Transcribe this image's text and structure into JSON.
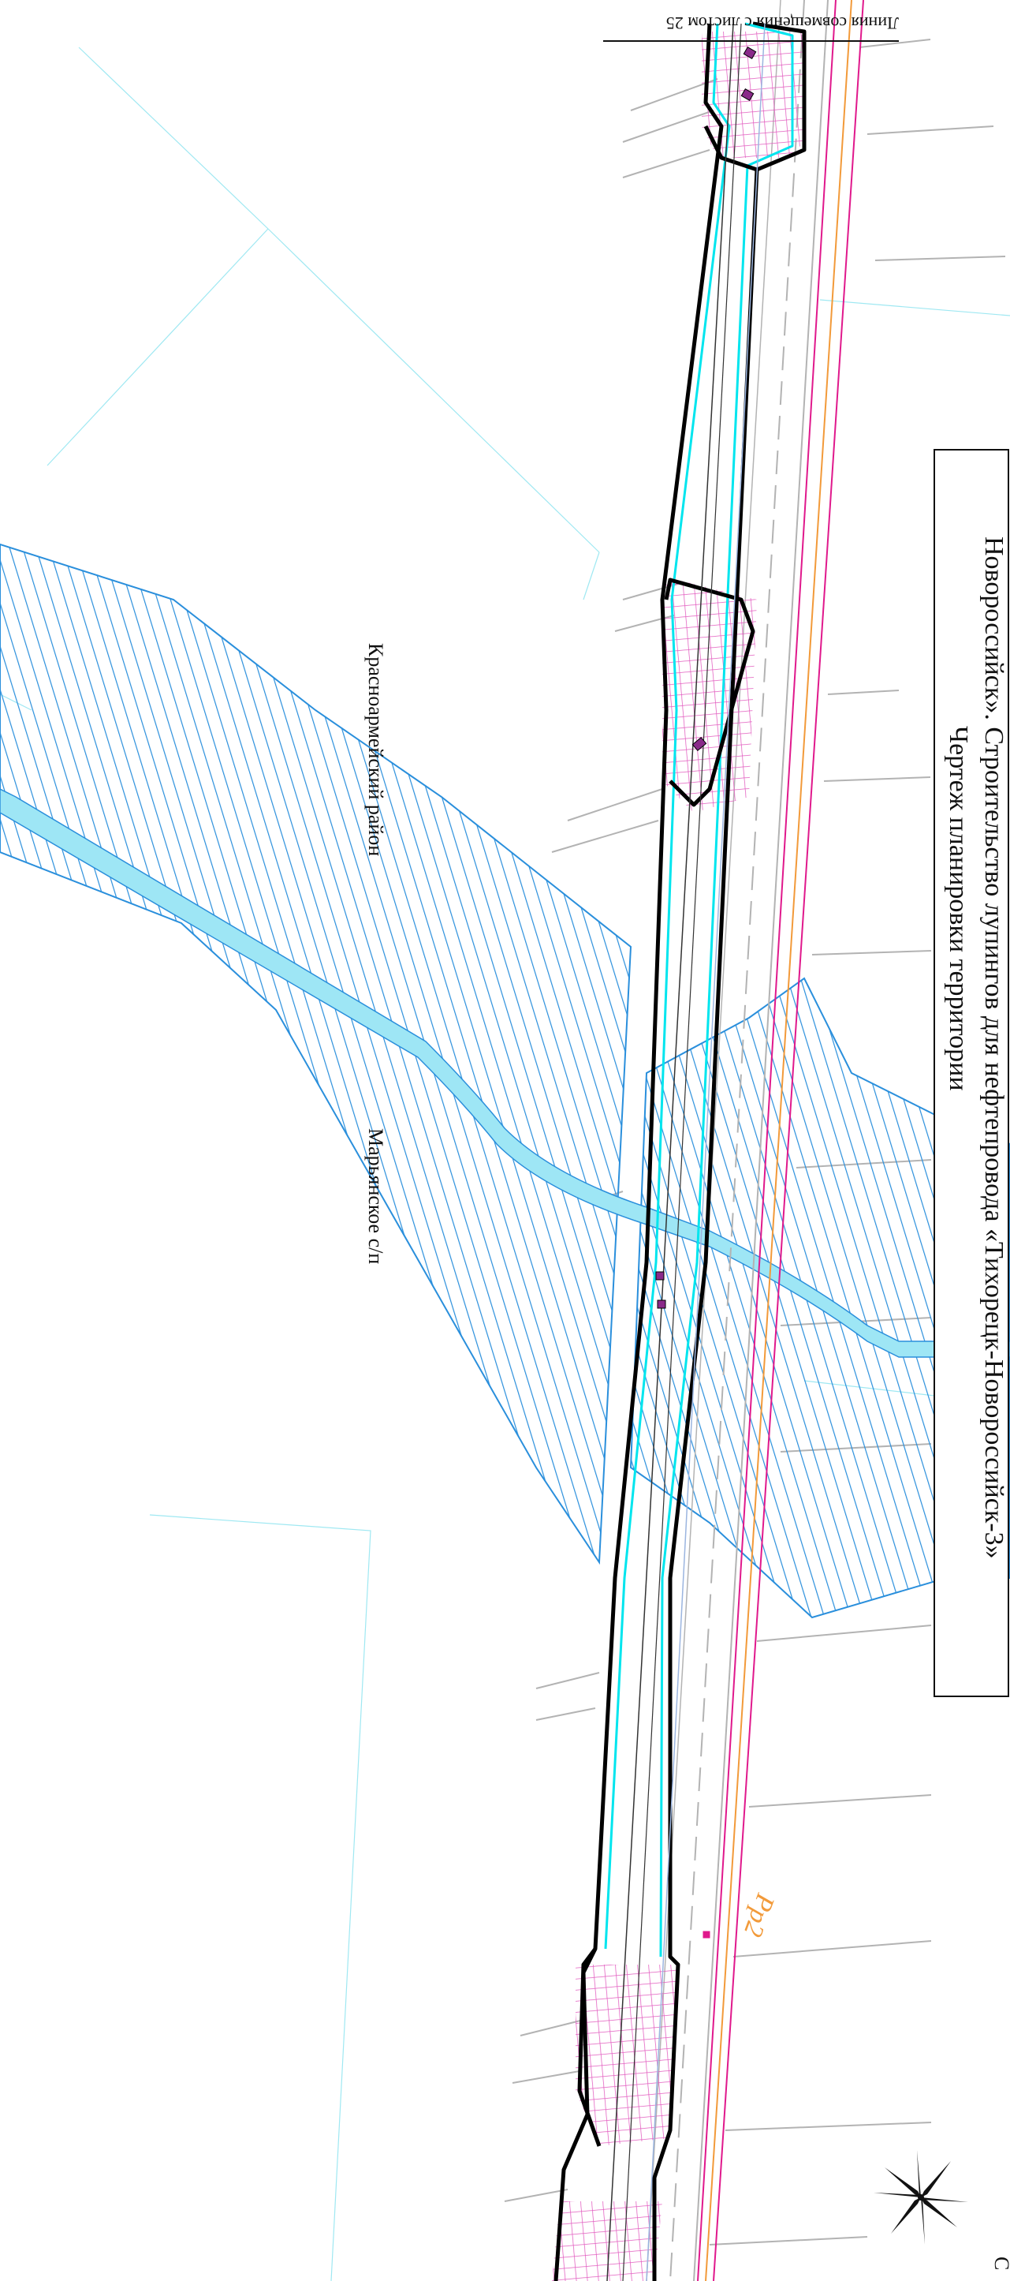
{
  "title": {
    "line1": "Новороссийск». Строительство лупингов для нефтепровода «Тихорецк-Новороссийск-3»",
    "line2": "Чертеж планировки территории"
  },
  "labels": {
    "match_line": "Линия совмещения с листом 25",
    "district": "Красноармейский район",
    "settlement": "Марьянское  с/п",
    "point": "Рр2",
    "north": "С"
  },
  "colors": {
    "corridor_border": "#000000",
    "corridor_inner": "#00e5ee",
    "hatch": "#2a8fdc",
    "river": "#9ee6f5",
    "magenta": "#e0198c",
    "orange": "#f29a3a",
    "grid": "#9fe8f2",
    "road": "#b3b3b3"
  },
  "icons": [
    "north-arrow-icon",
    "marker-icon"
  ]
}
